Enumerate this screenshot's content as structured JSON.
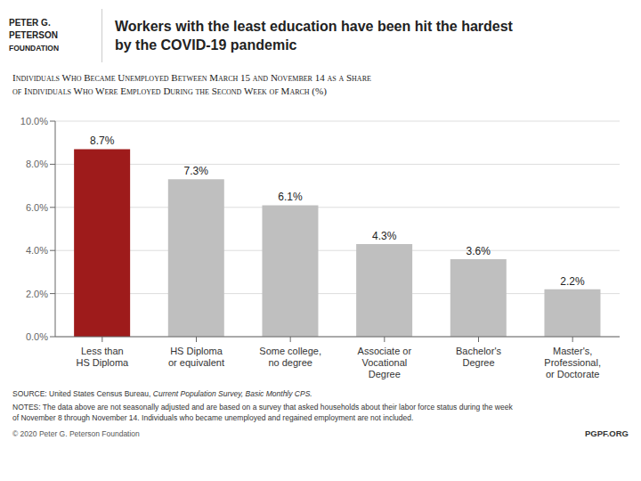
{
  "chart_data": {
    "type": "bar",
    "title": "Workers with the least education have been hit the hardest\nby the COVID-19 pandemic",
    "subtitle": "Individuals Who Became Unemployed Between March 15 and November 14 as a Share\nof Individuals Who Were Employed During the Second Week of March (%)",
    "categories": [
      "Less than\nHS Diploma",
      "HS Diploma\nor equivalent",
      "Some college,\nno degree",
      "Associate or\nVocational\nDegree",
      "Bachelor's\nDegree",
      "Master's,\nProfessional,\nor Doctorate"
    ],
    "values": [
      8.7,
      7.3,
      6.1,
      4.3,
      3.6,
      2.2
    ],
    "value_labels": [
      "8.7%",
      "7.3%",
      "6.1%",
      "4.3%",
      "3.6%",
      "2.2%"
    ],
    "data_labels": true,
    "colors": [
      "#9e1b1b",
      "#bfbfbf",
      "#bfbfbf",
      "#bfbfbf",
      "#bfbfbf",
      "#bfbfbf"
    ],
    "ylim": [
      0,
      10.0
    ],
    "yticks": [
      {
        "value": 0,
        "label": "0.0%"
      },
      {
        "value": 2,
        "label": "2.0%"
      },
      {
        "value": 4,
        "label": "4.0%"
      },
      {
        "value": 6,
        "label": "6.0%"
      },
      {
        "value": 8,
        "label": "8.0%"
      },
      {
        "value": 10,
        "label": "10.0%"
      }
    ],
    "grid": true,
    "annotations": [
      "PETER G.",
      "PETERSON",
      "FOUNDATION",
      "SOURCE: United States Census Bureau, ",
      "Current Population Survey, Basic Monthly CPS.",
      "NOTES: The data above are not seasonally adjusted and are based on a survey that asked households about their labor force status during the week",
      "of November 8 through November 14. Individuals who became unemployed and regained employment are not included.",
      "© 2020 Peter G. Peterson Foundation",
      "PGPF.ORG"
    ]
  }
}
